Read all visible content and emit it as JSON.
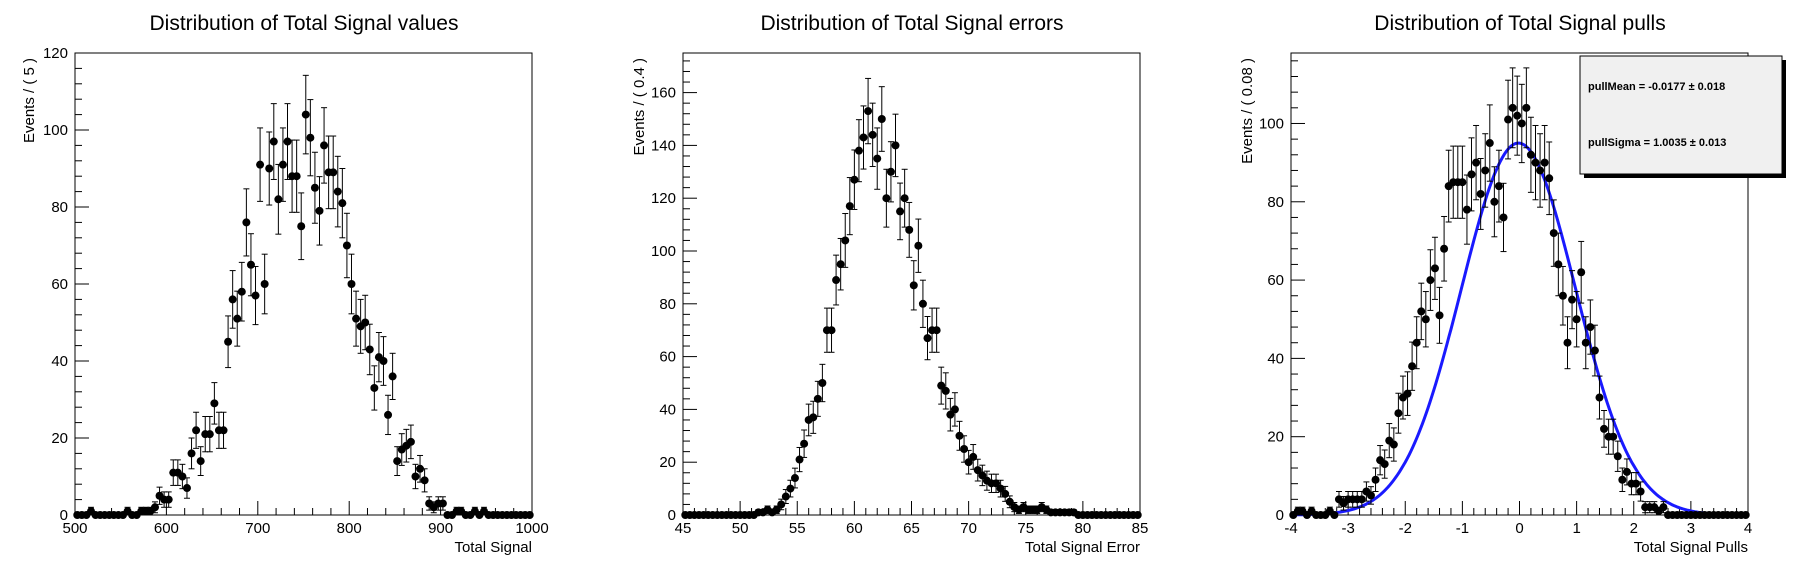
{
  "chart_data": [
    {
      "type": "scatter",
      "title": "Distribution of Total Signal values",
      "xlabel": "Total Signal",
      "ylabel": "Events / ( 5 )",
      "xlim": [
        500,
        1000
      ],
      "ylim": [
        0,
        120
      ],
      "xticks": [
        500,
        600,
        700,
        800,
        900,
        1000
      ],
      "yticks": [
        0,
        20,
        40,
        60,
        80,
        100,
        120
      ],
      "x": [
        502.5,
        507.5,
        512.5,
        517.5,
        522.5,
        527.5,
        532.5,
        537.5,
        542.5,
        547.5,
        552.5,
        557.5,
        562.5,
        567.5,
        572.5,
        577.5,
        582.5,
        587.5,
        592.5,
        597.5,
        602.5,
        607.5,
        612.5,
        617.5,
        622.5,
        627.5,
        632.5,
        637.5,
        642.5,
        647.5,
        652.5,
        657.5,
        662.5,
        667.5,
        672.5,
        677.5,
        682.5,
        687.5,
        692.5,
        697.5,
        702.5,
        707.5,
        712.5,
        717.5,
        722.5,
        727.5,
        732.5,
        737.5,
        742.5,
        747.5,
        752.5,
        757.5,
        762.5,
        767.5,
        772.5,
        777.5,
        782.5,
        787.5,
        792.5,
        797.5,
        802.5,
        807.5,
        812.5,
        817.5,
        822.5,
        827.5,
        832.5,
        837.5,
        842.5,
        847.5,
        852.5,
        857.5,
        862.5,
        867.5,
        872.5,
        877.5,
        882.5,
        887.5,
        892.5,
        897.5,
        902.5,
        907.5,
        912.5,
        917.5,
        922.5,
        927.5,
        932.5,
        937.5,
        942.5,
        947.5,
        952.5,
        957.5,
        962.5,
        967.5,
        972.5,
        977.5,
        982.5,
        987.5,
        992.5,
        997.5
      ],
      "y": [
        0,
        0,
        0,
        1,
        0,
        0,
        0,
        0,
        0,
        0,
        0,
        1,
        0,
        0,
        1,
        1,
        1,
        2,
        5,
        4,
        4,
        11,
        11,
        10,
        7,
        16,
        22,
        14,
        21,
        21,
        29,
        22,
        22,
        45,
        56,
        51,
        58,
        76,
        65,
        57,
        91,
        60,
        90,
        97,
        82,
        91,
        97,
        88,
        88,
        75,
        104,
        98,
        85,
        79,
        96,
        89,
        89,
        84,
        81,
        70,
        60,
        51,
        49,
        50,
        43,
        33,
        41,
        40,
        26,
        36,
        14,
        17,
        18,
        19,
        10,
        12,
        9,
        3,
        2,
        3,
        3,
        0,
        0,
        1,
        1,
        0,
        0,
        1,
        0,
        1,
        0,
        0,
        0,
        0,
        0,
        0,
        0,
        0,
        0,
        0
      ]
    },
    {
      "type": "scatter",
      "title": "Distribution of Total Signal errors",
      "xlabel": "Total Signal Error",
      "ylabel": "Events / ( 0.4 )",
      "xlim": [
        45,
        85
      ],
      "ylim": [
        0,
        175
      ],
      "xticks": [
        45,
        50,
        55,
        60,
        65,
        70,
        75,
        80,
        85
      ],
      "yticks": [
        0,
        20,
        40,
        60,
        80,
        100,
        120,
        140,
        160
      ],
      "x": [
        45.2,
        45.6,
        46.0,
        46.4,
        46.8,
        47.2,
        47.6,
        48.0,
        48.4,
        48.8,
        49.2,
        49.6,
        50.0,
        50.4,
        50.8,
        51.2,
        51.6,
        52.0,
        52.4,
        52.8,
        53.2,
        53.6,
        54.0,
        54.4,
        54.8,
        55.2,
        55.6,
        56.0,
        56.4,
        56.8,
        57.2,
        57.6,
        58.0,
        58.4,
        58.8,
        59.2,
        59.6,
        60.0,
        60.4,
        60.8,
        61.2,
        61.6,
        62.0,
        62.4,
        62.8,
        63.2,
        63.6,
        64.0,
        64.4,
        64.8,
        65.2,
        65.6,
        66.0,
        66.4,
        66.8,
        67.2,
        67.6,
        68.0,
        68.4,
        68.8,
        69.2,
        69.6,
        70.0,
        70.4,
        70.8,
        71.2,
        71.6,
        72.0,
        72.4,
        72.8,
        73.2,
        73.6,
        74.0,
        74.4,
        74.8,
        75.2,
        75.6,
        76.0,
        76.4,
        76.8,
        77.2,
        77.6,
        78.0,
        78.4,
        78.8,
        79.2,
        79.6,
        80.0,
        80.4,
        80.8,
        81.2,
        81.6,
        82.0,
        82.4,
        82.8,
        83.2,
        83.6,
        84.0,
        84.4,
        84.8
      ],
      "y": [
        0,
        0,
        0,
        0,
        0,
        0,
        0,
        0,
        0,
        0,
        0,
        0,
        0,
        0,
        0,
        0,
        1,
        1,
        2,
        1,
        2,
        4,
        7,
        10,
        14,
        21,
        27,
        36,
        37,
        44,
        50,
        70,
        70,
        89,
        95,
        104,
        117,
        127,
        138,
        143,
        153,
        144,
        135,
        150,
        120,
        130,
        140,
        115,
        120,
        108,
        87,
        102,
        80,
        67,
        70,
        70,
        49,
        47,
        38,
        40,
        30,
        25,
        20,
        22,
        17,
        15,
        13,
        12,
        12,
        10,
        8,
        5,
        3,
        2,
        3,
        2,
        2,
        2,
        3,
        2,
        1,
        1,
        1,
        1,
        1,
        1,
        0,
        0,
        0,
        0,
        0,
        0,
        0,
        0,
        0,
        0,
        0,
        0,
        0,
        0
      ]
    },
    {
      "type": "scatter",
      "title": "Distribution of Total Signal pulls",
      "xlabel": "Total Signal Pulls",
      "ylabel": "Events / ( 0.08 )",
      "xlim": [
        -4,
        4
      ],
      "ylim": [
        0,
        118
      ],
      "xticks": [
        -4,
        -3,
        -2,
        -1,
        0,
        1,
        2,
        3,
        4
      ],
      "yticks": [
        0,
        20,
        40,
        60,
        80,
        100
      ],
      "legend": {
        "position": "top-right",
        "lines": [
          "pullMean = -0.0177 ± 0.018",
          "pullSigma = 1.0035 ± 0.013"
        ]
      },
      "fit": {
        "type": "gaussian",
        "mean": -0.0177,
        "sigma": 1.0035,
        "peak": 95,
        "color": "#1a1aff"
      },
      "x": [
        -3.96,
        -3.88,
        -3.8,
        -3.72,
        -3.64,
        -3.56,
        -3.48,
        -3.4,
        -3.32,
        -3.24,
        -3.16,
        -3.08,
        -3.0,
        -2.92,
        -2.84,
        -2.76,
        -2.68,
        -2.6,
        -2.52,
        -2.44,
        -2.36,
        -2.28,
        -2.2,
        -2.12,
        -2.04,
        -1.96,
        -1.88,
        -1.8,
        -1.72,
        -1.64,
        -1.56,
        -1.48,
        -1.4,
        -1.32,
        -1.24,
        -1.16,
        -1.08,
        -1.0,
        -0.92,
        -0.84,
        -0.76,
        -0.68,
        -0.6,
        -0.52,
        -0.44,
        -0.36,
        -0.28,
        -0.2,
        -0.12,
        -0.04,
        0.04,
        0.12,
        0.2,
        0.28,
        0.36,
        0.44,
        0.52,
        0.6,
        0.68,
        0.76,
        0.84,
        0.92,
        1.0,
        1.08,
        1.16,
        1.24,
        1.32,
        1.4,
        1.48,
        1.56,
        1.64,
        1.72,
        1.8,
        1.88,
        1.96,
        2.04,
        2.12,
        2.2,
        2.28,
        2.36,
        2.44,
        2.52,
        2.6,
        2.68,
        2.76,
        2.84,
        2.92,
        3.0,
        3.08,
        3.16,
        3.24,
        3.32,
        3.4,
        3.48,
        3.56,
        3.64,
        3.72,
        3.8,
        3.88,
        3.96
      ],
      "y": [
        0,
        1,
        1,
        0,
        1,
        0,
        0,
        0,
        1,
        0,
        4,
        3,
        4,
        4,
        4,
        4,
        6,
        5,
        9,
        14,
        13,
        19,
        18,
        26,
        30,
        31,
        38,
        44,
        52,
        50,
        60,
        63,
        51,
        68,
        84,
        85,
        85,
        85,
        78,
        87,
        90,
        82,
        88,
        95,
        80,
        84,
        76,
        101,
        104,
        102,
        100,
        104,
        92,
        90,
        88,
        90,
        86,
        72,
        64,
        56,
        44,
        55,
        50,
        62,
        44,
        48,
        42,
        30,
        22,
        20,
        20,
        15,
        9,
        11,
        8,
        8,
        6,
        2,
        2,
        2,
        1,
        2,
        0,
        0,
        0,
        0,
        0,
        0,
        0,
        0,
        0,
        0,
        0,
        0,
        0,
        0,
        0,
        0,
        0,
        0
      ]
    }
  ]
}
